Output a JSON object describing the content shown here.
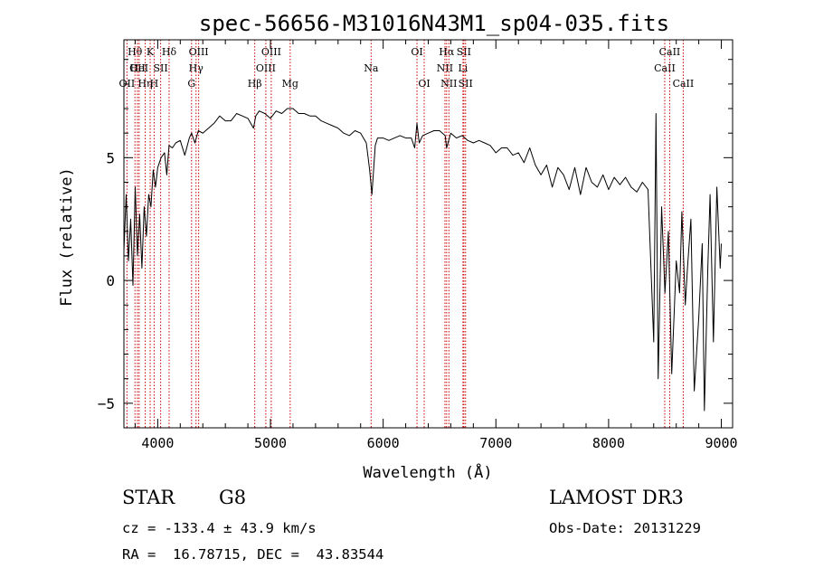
{
  "chart_data": {
    "type": "line",
    "title": "spec-56656-M31016N43M1_sp04-035.fits",
    "xlabel": "Wavelength (Å)",
    "ylabel": "Flux (relative)",
    "xlim": [
      3700,
      9100
    ],
    "ylim": [
      -6.0,
      9.8
    ],
    "xticks": [
      4000,
      5000,
      6000,
      7000,
      8000,
      9000
    ],
    "yticks": [
      -5,
      0,
      5
    ],
    "series": [
      {
        "name": "flux",
        "x": [
          3700,
          3720,
          3740,
          3760,
          3780,
          3800,
          3820,
          3840,
          3860,
          3880,
          3900,
          3920,
          3940,
          3960,
          3980,
          4000,
          4030,
          4060,
          4080,
          4100,
          4130,
          4160,
          4200,
          4240,
          4280,
          4300,
          4330,
          4360,
          4400,
          4450,
          4500,
          4550,
          4600,
          4650,
          4700,
          4750,
          4800,
          4850,
          4870,
          4900,
          4950,
          5000,
          5050,
          5100,
          5150,
          5200,
          5250,
          5300,
          5350,
          5400,
          5450,
          5500,
          5550,
          5600,
          5650,
          5700,
          5750,
          5800,
          5850,
          5880,
          5900,
          5930,
          5950,
          6000,
          6050,
          6100,
          6150,
          6200,
          6250,
          6280,
          6300,
          6320,
          6350,
          6400,
          6450,
          6500,
          6550,
          6563,
          6600,
          6650,
          6700,
          6750,
          6800,
          6850,
          6900,
          6950,
          7000,
          7050,
          7100,
          7150,
          7200,
          7250,
          7300,
          7350,
          7400,
          7450,
          7500,
          7550,
          7600,
          7650,
          7700,
          7750,
          7800,
          7850,
          7900,
          7950,
          8000,
          8050,
          8100,
          8150,
          8200,
          8250,
          8300,
          8350,
          8400,
          8420,
          8440,
          8470,
          8500,
          8530,
          8560,
          8600,
          8630,
          8650,
          8680,
          8700,
          8730,
          8760,
          8800,
          8830,
          8850,
          8880,
          8900,
          8930,
          8960,
          8990,
          9000
        ],
        "values": [
          1.2,
          3.5,
          0.8,
          2.5,
          -0.2,
          3.8,
          1.0,
          2.7,
          0.5,
          3.0,
          1.8,
          3.5,
          3.0,
          4.5,
          3.8,
          4.6,
          5.0,
          5.2,
          4.3,
          5.5,
          5.4,
          5.6,
          5.7,
          5.1,
          5.8,
          6.0,
          5.6,
          6.1,
          6.0,
          6.2,
          6.4,
          6.7,
          6.5,
          6.5,
          6.8,
          6.7,
          6.6,
          6.2,
          6.7,
          6.9,
          6.8,
          6.6,
          6.9,
          6.8,
          7.0,
          7.0,
          6.8,
          6.8,
          6.7,
          6.7,
          6.5,
          6.4,
          6.3,
          6.2,
          6.0,
          5.9,
          6.1,
          6.0,
          5.6,
          4.5,
          3.5,
          5.5,
          5.8,
          5.8,
          5.7,
          5.8,
          5.9,
          5.8,
          5.8,
          5.4,
          6.4,
          5.6,
          5.9,
          6.0,
          6.1,
          6.1,
          5.9,
          5.4,
          6.0,
          5.8,
          5.9,
          5.7,
          5.6,
          5.7,
          5.6,
          5.5,
          5.2,
          5.4,
          5.4,
          5.1,
          5.2,
          4.8,
          5.4,
          4.7,
          4.3,
          4.7,
          3.8,
          4.6,
          4.3,
          3.7,
          4.6,
          3.5,
          4.6,
          4.0,
          3.8,
          4.3,
          3.7,
          4.2,
          3.9,
          4.2,
          3.8,
          3.6,
          4.0,
          3.7,
          -2.5,
          6.8,
          -4.0,
          3.0,
          -0.5,
          2.0,
          -3.8,
          0.8,
          -0.5,
          2.8,
          -1.0,
          0.5,
          2.5,
          -4.5,
          -1.5,
          1.5,
          -5.3,
          0.5,
          3.5,
          -2.5,
          3.8,
          0.5,
          1.5
        ]
      }
    ],
    "lines": [
      {
        "wl": 3727,
        "labels": [
          "OII"
        ],
        "row": 2
      },
      {
        "wl": 3798,
        "labels": [
          "Hθ"
        ],
        "row": 0
      },
      {
        "wl": 3820,
        "labels": [
          "OII"
        ],
        "row": 1
      },
      {
        "wl": 3835,
        "labels": [
          "HeI"
        ],
        "row": 1
      },
      {
        "wl": 3889,
        "labels": [
          "Hη"
        ],
        "row": 2
      },
      {
        "wl": 3933,
        "labels": [
          "K"
        ],
        "row": 0
      },
      {
        "wl": 3968,
        "labels": [
          "H"
        ],
        "row": 2
      },
      {
        "wl": 4026,
        "labels": [
          "SII"
        ],
        "row": 1
      },
      {
        "wl": 4101,
        "labels": [
          "Hδ"
        ],
        "row": 0
      },
      {
        "wl": 4300,
        "labels": [
          "G"
        ],
        "row": 2
      },
      {
        "wl": 4340,
        "labels": [
          "Hγ"
        ],
        "row": 1
      },
      {
        "wl": 4363,
        "labels": [
          "OIII"
        ],
        "row": 0
      },
      {
        "wl": 4861,
        "labels": [
          "Hβ"
        ],
        "row": 2
      },
      {
        "wl": 4959,
        "labels": [
          "OIII"
        ],
        "row": 1
      },
      {
        "wl": 5007,
        "labels": [
          "OIII"
        ],
        "row": 0
      },
      {
        "wl": 5175,
        "labels": [
          "Mg"
        ],
        "row": 2
      },
      {
        "wl": 5893,
        "labels": [
          "Na"
        ],
        "row": 1
      },
      {
        "wl": 6300,
        "labels": [
          "OI"
        ],
        "row": 0
      },
      {
        "wl": 6364,
        "labels": [
          "OI"
        ],
        "row": 2
      },
      {
        "wl": 6548,
        "labels": [
          "NII"
        ],
        "row": 1
      },
      {
        "wl": 6563,
        "labels": [
          "Hα"
        ],
        "row": 0
      },
      {
        "wl": 6583,
        "labels": [
          "NII"
        ],
        "row": 2
      },
      {
        "wl": 6708,
        "labels": [
          "Li"
        ],
        "row": 1
      },
      {
        "wl": 6716,
        "labels": [
          "SII"
        ],
        "row": 0
      },
      {
        "wl": 6731,
        "labels": [
          "SII"
        ],
        "row": 2
      },
      {
        "wl": 8498,
        "labels": [
          "CaII"
        ],
        "row": 1
      },
      {
        "wl": 8542,
        "labels": [
          "CaII"
        ],
        "row": 0
      },
      {
        "wl": 8662,
        "labels": [
          "CaII"
        ],
        "row": 2
      }
    ]
  },
  "info": {
    "class": "STAR",
    "subclass": "G8",
    "survey": "LAMOST DR3",
    "cz": "cz = -133.4 ± 43.9 km/s",
    "obs_date": "Obs-Date: 20131229",
    "coords": "RA =  16.78715, DEC =  43.83544"
  },
  "colors": {
    "line_marker": "#cc0000",
    "spectrum": "#000000",
    "axis": "#000000"
  }
}
